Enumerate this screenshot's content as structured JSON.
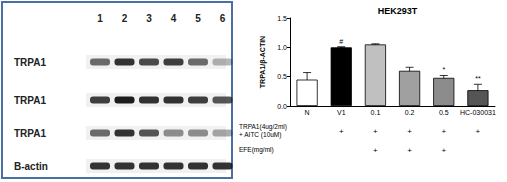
{
  "chart_data": {
    "type": "bar",
    "title": "HEK293T",
    "y_label": "TRPA1/β-ACTIN",
    "categories": [
      "N",
      "V1",
      "0.1",
      "0.2",
      "0.5",
      "HC-030031"
    ],
    "values": [
      0.45,
      1.0,
      1.05,
      0.6,
      0.48,
      0.27
    ],
    "errors": [
      0.12,
      0.01,
      0.01,
      0.06,
      0.04,
      0.1
    ],
    "colors": [
      "#ffffff",
      "#000000",
      "#c0c0c0",
      "#a0a0a0",
      "#8c8c8c",
      "#555555"
    ],
    "significance": [
      null,
      "#",
      null,
      null,
      "*",
      "**"
    ],
    "ylim": [
      0,
      1.5
    ],
    "yticks": [
      {
        "value": 0,
        "label": "0.0"
      },
      0.5,
      {
        "value": 1,
        "label": "1.0"
      },
      1.5
    ],
    "treatments": [
      {
        "label": [
          "TRPA1(4ug/2ml)",
          "+ AITC (10uM)"
        ],
        "marks": [
          null,
          "+",
          "+",
          "+",
          "+",
          "+"
        ]
      },
      {
        "label": [
          "EFE(mg/ml)"
        ],
        "marks": [
          null,
          null,
          "+",
          "+",
          "+",
          null
        ]
      }
    ]
  },
  "blot": {
    "lanes": [
      "1",
      "2",
      "3",
      "4",
      "5",
      "6"
    ],
    "rows": [
      {
        "label": "TRPA1",
        "intensity": [
          0.6,
          0.85,
          0.75,
          0.8,
          0.6,
          0.3
        ]
      },
      {
        "label": "TRPA1",
        "intensity": [
          0.8,
          0.95,
          0.85,
          0.85,
          0.8,
          0.7
        ]
      },
      {
        "label": "TRPA1",
        "intensity": [
          0.6,
          0.85,
          0.7,
          0.45,
          0.45,
          0.35
        ]
      },
      {
        "label": "B-actin",
        "intensity": [
          0.85,
          0.85,
          0.85,
          0.85,
          0.85,
          0.85
        ]
      }
    ]
  }
}
